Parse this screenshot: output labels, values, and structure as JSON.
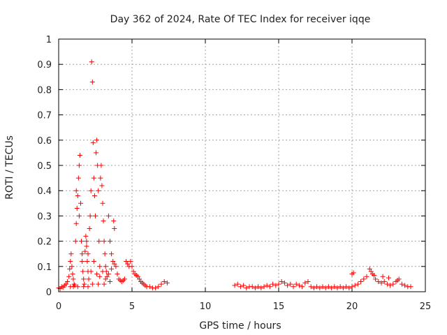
{
  "chart_data": {
    "type": "scatter",
    "title": "Day 362 of 2024, Rate Of TEC Index for receiver iqqe",
    "xlabel": "GPS time / hours",
    "ylabel": "ROTI / TECUs",
    "xlim": [
      0,
      25
    ],
    "ylim": [
      0,
      1
    ],
    "xticks": [
      "0",
      "5",
      "10",
      "15",
      "20",
      "25"
    ],
    "yticks": [
      "0",
      "0.1",
      "0.2",
      "0.3",
      "0.4",
      "0.5",
      "0.6",
      "0.7",
      "0.8",
      "0.9",
      "1"
    ],
    "grid": true,
    "marker": "plus",
    "color": "#ff0000",
    "series": [
      {
        "points": [
          [
            0.0,
            0.015
          ],
          [
            0.1,
            0.012
          ],
          [
            0.2,
            0.02
          ],
          [
            0.3,
            0.018
          ],
          [
            0.4,
            0.025
          ],
          [
            0.5,
            0.03
          ],
          [
            0.6,
            0.04
          ],
          [
            0.7,
            0.06
          ],
          [
            0.75,
            0.09
          ],
          [
            0.8,
            0.12
          ],
          [
            0.85,
            0.15
          ],
          [
            0.9,
            0.1
          ],
          [
            0.95,
            0.07
          ],
          [
            1.0,
            0.05
          ],
          [
            1.05,
            0.03
          ],
          [
            1.1,
            0.025
          ],
          [
            1.15,
            0.2
          ],
          [
            1.2,
            0.27
          ],
          [
            1.25,
            0.33
          ],
          [
            1.3,
            0.38
          ],
          [
            1.35,
            0.45
          ],
          [
            1.4,
            0.5
          ],
          [
            1.45,
            0.54
          ],
          [
            1.5,
            0.35
          ],
          [
            1.55,
            0.2
          ],
          [
            1.6,
            0.12
          ],
          [
            1.65,
            0.08
          ],
          [
            1.7,
            0.05
          ],
          [
            1.75,
            0.03
          ],
          [
            1.8,
            0.16
          ],
          [
            1.85,
            0.22
          ],
          [
            1.9,
            0.18
          ],
          [
            1.95,
            0.12
          ],
          [
            2.0,
            0.08
          ],
          [
            2.05,
            0.05
          ],
          [
            2.1,
            0.25
          ],
          [
            2.15,
            0.3
          ],
          [
            2.2,
            0.4
          ],
          [
            2.25,
            0.91
          ],
          [
            2.3,
            0.83
          ],
          [
            2.35,
            0.59
          ],
          [
            2.4,
            0.45
          ],
          [
            2.45,
            0.38
          ],
          [
            2.5,
            0.3
          ],
          [
            2.55,
            0.55
          ],
          [
            2.6,
            0.6
          ],
          [
            2.65,
            0.5
          ],
          [
            2.7,
            0.4
          ],
          [
            2.75,
            0.2
          ],
          [
            2.8,
            0.1
          ],
          [
            2.85,
            0.45
          ],
          [
            2.9,
            0.5
          ],
          [
            2.95,
            0.42
          ],
          [
            3.0,
            0.35
          ],
          [
            3.05,
            0.28
          ],
          [
            3.1,
            0.2
          ],
          [
            3.15,
            0.15
          ],
          [
            3.2,
            0.1
          ],
          [
            3.25,
            0.08
          ],
          [
            3.3,
            0.06
          ],
          [
            3.4,
            0.3
          ],
          [
            3.5,
            0.2
          ],
          [
            3.6,
            0.15
          ],
          [
            3.7,
            0.12
          ],
          [
            3.75,
            0.28
          ],
          [
            3.8,
            0.25
          ],
          [
            3.9,
            0.1
          ],
          [
            4.0,
            0.07
          ],
          [
            4.1,
            0.05
          ],
          [
            4.2,
            0.045
          ],
          [
            4.3,
            0.04
          ],
          [
            4.4,
            0.045
          ],
          [
            4.5,
            0.05
          ],
          [
            4.6,
            0.12
          ],
          [
            4.7,
            0.11
          ],
          [
            4.8,
            0.1
          ],
          [
            4.9,
            0.12
          ],
          [
            5.0,
            0.1
          ],
          [
            5.1,
            0.08
          ],
          [
            5.2,
            0.07
          ],
          [
            5.3,
            0.065
          ],
          [
            5.4,
            0.06
          ],
          [
            5.5,
            0.05
          ],
          [
            5.6,
            0.04
          ],
          [
            5.7,
            0.035
          ],
          [
            5.8,
            0.03
          ],
          [
            5.9,
            0.025
          ],
          [
            6.0,
            0.02
          ],
          [
            6.2,
            0.02
          ],
          [
            6.4,
            0.015
          ],
          [
            6.6,
            0.015
          ],
          [
            6.8,
            0.02
          ],
          [
            7.0,
            0.03
          ],
          [
            7.2,
            0.04
          ],
          [
            7.4,
            0.035
          ],
          [
            1.2,
            0.4
          ],
          [
            1.4,
            0.3
          ],
          [
            1.6,
            0.15
          ],
          [
            1.9,
            0.2
          ],
          [
            2.0,
            0.15
          ],
          [
            2.2,
            0.08
          ],
          [
            2.4,
            0.12
          ],
          [
            2.6,
            0.07
          ],
          [
            2.8,
            0.06
          ],
          [
            3.0,
            0.08
          ],
          [
            3.2,
            0.05
          ],
          [
            3.4,
            0.07
          ],
          [
            3.6,
            0.09
          ],
          [
            3.8,
            0.11
          ],
          [
            0.8,
            0.02
          ],
          [
            1.0,
            0.02
          ],
          [
            1.3,
            0.02
          ],
          [
            1.7,
            0.02
          ],
          [
            2.0,
            0.02
          ],
          [
            2.3,
            0.03
          ],
          [
            2.7,
            0.03
          ],
          [
            3.1,
            0.03
          ],
          [
            3.5,
            0.04
          ],
          [
            12.0,
            0.025
          ],
          [
            12.2,
            0.03
          ],
          [
            12.4,
            0.02
          ],
          [
            12.6,
            0.025
          ],
          [
            12.8,
            0.015
          ],
          [
            13.0,
            0.02
          ],
          [
            13.2,
            0.02
          ],
          [
            13.4,
            0.015
          ],
          [
            13.6,
            0.02
          ],
          [
            13.8,
            0.015
          ],
          [
            14.0,
            0.02
          ],
          [
            14.2,
            0.025
          ],
          [
            14.4,
            0.02
          ],
          [
            14.6,
            0.03
          ],
          [
            14.8,
            0.025
          ],
          [
            15.0,
            0.03
          ],
          [
            15.2,
            0.04
          ],
          [
            15.4,
            0.035
          ],
          [
            15.6,
            0.025
          ],
          [
            15.8,
            0.03
          ],
          [
            16.0,
            0.02
          ],
          [
            16.2,
            0.03
          ],
          [
            16.4,
            0.025
          ],
          [
            16.6,
            0.02
          ],
          [
            16.8,
            0.035
          ],
          [
            17.0,
            0.04
          ],
          [
            17.2,
            0.02
          ],
          [
            17.4,
            0.015
          ],
          [
            17.6,
            0.02
          ],
          [
            17.8,
            0.015
          ],
          [
            18.0,
            0.02
          ],
          [
            18.2,
            0.015
          ],
          [
            18.4,
            0.02
          ],
          [
            18.6,
            0.015
          ],
          [
            18.8,
            0.02
          ],
          [
            19.0,
            0.015
          ],
          [
            19.2,
            0.02
          ],
          [
            19.4,
            0.015
          ],
          [
            19.6,
            0.02
          ],
          [
            19.8,
            0.015
          ],
          [
            20.0,
            0.02
          ],
          [
            20.2,
            0.025
          ],
          [
            20.4,
            0.03
          ],
          [
            20.6,
            0.04
          ],
          [
            20.8,
            0.05
          ],
          [
            21.0,
            0.06
          ],
          [
            21.2,
            0.09
          ],
          [
            21.4,
            0.07
          ],
          [
            21.6,
            0.05
          ],
          [
            21.8,
            0.04
          ],
          [
            22.0,
            0.035
          ],
          [
            22.2,
            0.04
          ],
          [
            22.4,
            0.03
          ],
          [
            22.6,
            0.025
          ],
          [
            22.8,
            0.03
          ],
          [
            23.0,
            0.04
          ],
          [
            23.2,
            0.05
          ],
          [
            23.4,
            0.03
          ],
          [
            23.6,
            0.025
          ],
          [
            23.8,
            0.02
          ],
          [
            24.0,
            0.02
          ],
          [
            20.0,
            0.07
          ],
          [
            20.1,
            0.075
          ],
          [
            21.3,
            0.08
          ],
          [
            21.5,
            0.065
          ],
          [
            22.1,
            0.06
          ],
          [
            22.5,
            0.055
          ],
          [
            23.1,
            0.045
          ]
        ]
      }
    ]
  }
}
